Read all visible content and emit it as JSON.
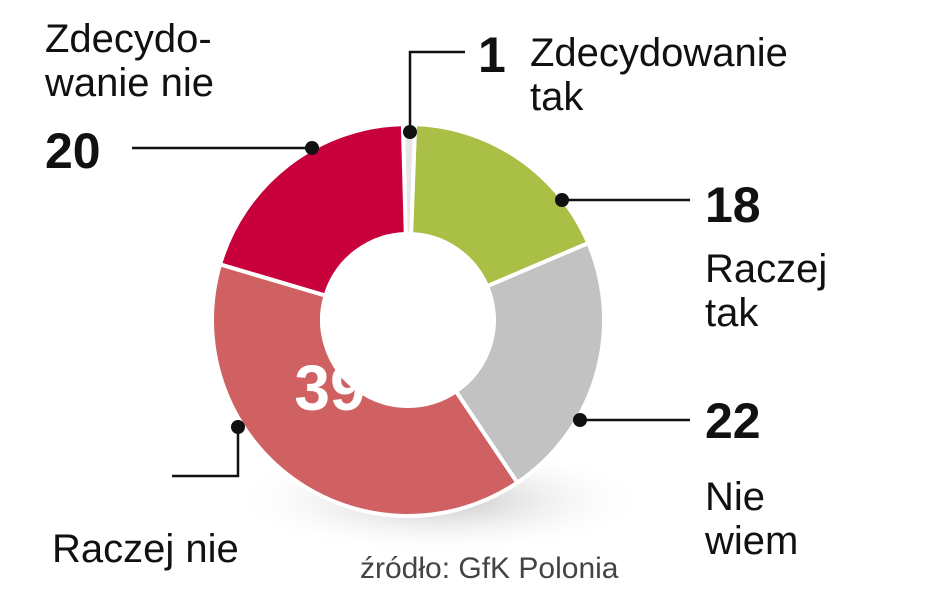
{
  "chart_data": {
    "type": "donut",
    "categories": [
      "Zdecydowanie\ntak",
      "Raczej\ntak",
      "Nie\nwiem",
      "Raczej nie",
      "Zdecydo-\nwanie nie"
    ],
    "values": [
      1,
      18,
      22,
      39,
      20
    ],
    "colors": [
      "#e6e6e6",
      "#a9bf45",
      "#c2c2c2",
      "#d06163",
      "#c8003c"
    ],
    "source": "źródło: GfK Polonia"
  }
}
